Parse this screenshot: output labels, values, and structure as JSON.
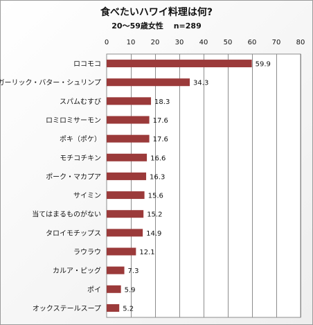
{
  "chart_data": {
    "type": "bar",
    "orientation": "horizontal",
    "title": "食べたいハワイ料理は何?",
    "subtitle": "20〜59歳女性　 n=289",
    "categories": [
      "ロコモコ",
      "ガーリック・バター・シュリンプ",
      "スパムむすび",
      "ロミロミサーモン",
      "ポキ（ポケ）",
      "モチコチキン",
      "ポーク・マカプア",
      "サイミン",
      "当てはまるものがない",
      "タロイモチップス",
      "ラウラウ",
      "カルア・ピッグ",
      "ポイ",
      "オックステールスープ"
    ],
    "values": [
      59.9,
      34.3,
      18.3,
      17.6,
      17.6,
      16.6,
      16.3,
      15.6,
      15.2,
      14.9,
      12.1,
      7.3,
      5.9,
      5.2
    ],
    "xlim": [
      0,
      80
    ],
    "xticks": [
      0,
      10,
      20,
      30,
      40,
      50,
      60,
      70,
      80
    ],
    "axis_position": "top",
    "grid": true,
    "bar_color": "#9b3a3a"
  }
}
